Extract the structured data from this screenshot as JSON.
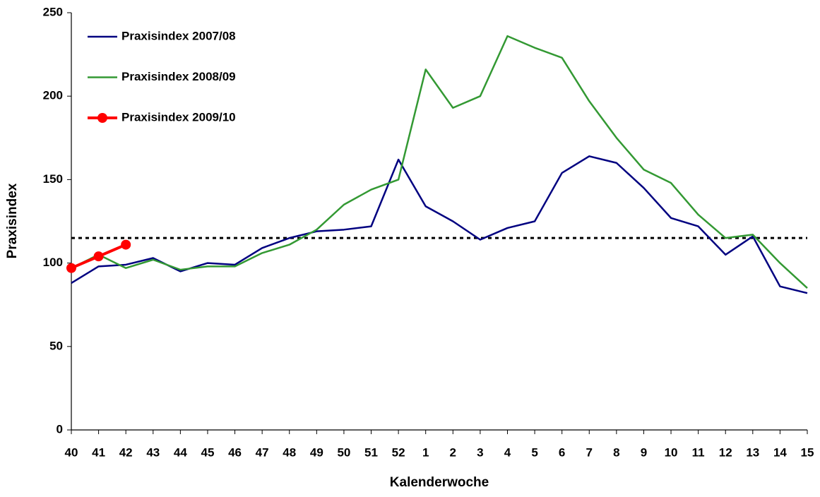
{
  "chart_data": {
    "type": "line",
    "x_label": "Kalenderwoche",
    "y_label": "Praxisindex",
    "categories": [
      "40",
      "41",
      "42",
      "43",
      "44",
      "45",
      "46",
      "47",
      "48",
      "49",
      "50",
      "51",
      "52",
      "1",
      "2",
      "3",
      "4",
      "5",
      "6",
      "7",
      "8",
      "9",
      "10",
      "11",
      "12",
      "13",
      "14",
      "15"
    ],
    "series": [
      {
        "name": "Praxisindex 2007/08",
        "color": "#000080",
        "marker": false,
        "values": [
          88,
          98,
          99,
          103,
          95,
          100,
          99,
          109,
          115,
          119,
          120,
          122,
          162,
          134,
          125,
          114,
          121,
          125,
          154,
          164,
          160,
          145,
          127,
          122,
          105,
          116,
          86,
          82
        ]
      },
      {
        "name": "Praxisindex 2008/09",
        "color": "#339933",
        "marker": false,
        "values": [
          97,
          105,
          97,
          102,
          96,
          98,
          98,
          106,
          111,
          120,
          135,
          144,
          150,
          216,
          193,
          200,
          236,
          229,
          223,
          197,
          175,
          156,
          148,
          129,
          115,
          117,
          100,
          85
        ]
      },
      {
        "name": "Praxisindex 2009/10",
        "color": "#ff0000",
        "marker": true,
        "values": [
          97,
          104,
          111,
          null,
          null,
          null,
          null,
          null,
          null,
          null,
          null,
          null,
          null,
          null,
          null,
          null,
          null,
          null,
          null,
          null,
          null,
          null,
          null,
          null,
          null,
          null,
          null,
          null
        ]
      }
    ],
    "reference_line": 115,
    "ylim": [
      0,
      250
    ],
    "yticks": [
      0,
      50,
      100,
      150,
      200,
      250
    ],
    "grid": false,
    "legend": "upper left"
  }
}
